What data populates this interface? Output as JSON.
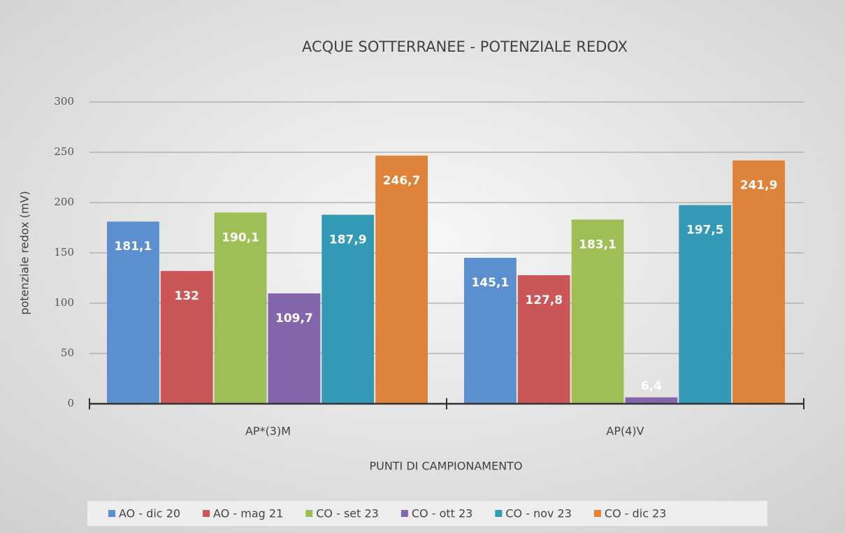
{
  "chart_data": {
    "type": "bar",
    "title": "ACQUE SOTTERRANEE - POTENZIALE REDOX",
    "x_label": "PUNTI DI CAMPIONAMENTO",
    "y_label": "potenziale redox (mV)",
    "categories": [
      "AP*(3)M",
      "AP(4)V"
    ],
    "series": [
      {
        "name": "AO - dic 20",
        "color": "#5b8fd0",
        "values": [
          181.1,
          145.1
        ],
        "value_labels": [
          "181,1",
          "145,1"
        ]
      },
      {
        "name": "AO - mag 21",
        "color": "#cb5658",
        "values": [
          132,
          127.8
        ],
        "value_labels": [
          "132",
          "127,8"
        ]
      },
      {
        "name": "CO - set 23",
        "color": "#9ebf55",
        "values": [
          190.1,
          183.1
        ],
        "value_labels": [
          "190,1",
          "183,1"
        ]
      },
      {
        "name": "CO - ott 23",
        "color": "#8466ad",
        "values": [
          109.7,
          6.4
        ],
        "value_labels": [
          "109,7",
          "6,4"
        ]
      },
      {
        "name": "CO - nov 23",
        "color": "#3399b5",
        "values": [
          187.9,
          197.5
        ],
        "value_labels": [
          "187,9",
          "197,5"
        ]
      },
      {
        "name": "CO - dic 23",
        "color": "#e0833a",
        "values": [
          246.7,
          241.9
        ],
        "value_labels": [
          "246,7",
          "241,9"
        ]
      }
    ],
    "ylim": [
      0,
      300
    ],
    "yticks": [
      0,
      50,
      100,
      150,
      200,
      250,
      300
    ],
    "grid": true,
    "legend": "bottom"
  }
}
